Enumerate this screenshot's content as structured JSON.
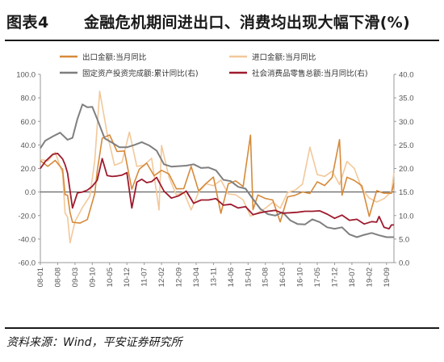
{
  "header": {
    "figure_no": "图表4",
    "title": "金融危机期间进出口、消费均出现大幅下滑(%)"
  },
  "source": "资料来源：Wind，平安证券研究所",
  "colors": {
    "export": "#d68a3a",
    "import": "#f2c89a",
    "fai": "#7f7f7f",
    "retail": "#9e1b2e",
    "axis": "#999999",
    "text": "#555555"
  },
  "chart_data": {
    "type": "line",
    "x_tick_labels": [
      "08-01",
      "08-08",
      "09-03",
      "09-10",
      "10-05",
      "10-12",
      "11-07",
      "12-02",
      "12-09",
      "13-04",
      "13-11",
      "14-06",
      "15-01",
      "15-08",
      "16-03",
      "16-10",
      "17-05",
      "17-12",
      "18-07",
      "19-02",
      "19-09"
    ],
    "x_range": [
      "2008-01",
      "2019-12"
    ],
    "y_left": {
      "min": -60,
      "max": 100,
      "ticks": [
        "100.0",
        "80.0",
        "60.0",
        "40.0",
        "20.0",
        "0.0",
        "-20.0",
        "-40.0",
        "-60.0"
      ]
    },
    "y_right": {
      "min": 0,
      "max": 40,
      "ticks": [
        "40.0",
        "35.0",
        "30.0",
        "25.0",
        "20.0",
        "15.0",
        "10.0",
        "5.0",
        "0.0"
      ]
    },
    "legend_position": "top",
    "series": [
      {
        "name": "出口金额:当月同比",
        "axis": "left",
        "color_key": "export",
        "points": [
          [
            "2008-01",
            26.6
          ],
          [
            "2008-04",
            21.8
          ],
          [
            "2008-07",
            26.9
          ],
          [
            "2008-10",
            19.2
          ],
          [
            "2008-11",
            -2.2
          ],
          [
            "2008-12",
            -2.8
          ],
          [
            "2009-01",
            -17.5
          ],
          [
            "2009-02",
            -25.7
          ],
          [
            "2009-05",
            -26.4
          ],
          [
            "2009-08",
            -23.4
          ],
          [
            "2009-11",
            -1.2
          ],
          [
            "2009-12",
            17.7
          ],
          [
            "2010-02",
            45.7
          ],
          [
            "2010-05",
            48.5
          ],
          [
            "2010-08",
            34.4
          ],
          [
            "2010-11",
            34.9
          ],
          [
            "2011-02",
            2.4
          ],
          [
            "2011-05",
            19.4
          ],
          [
            "2011-08",
            24.5
          ],
          [
            "2011-11",
            13.8
          ],
          [
            "2012-02",
            18.4
          ],
          [
            "2012-05",
            15.3
          ],
          [
            "2012-08",
            2.7
          ],
          [
            "2012-11",
            2.9
          ],
          [
            "2013-02",
            21.8
          ],
          [
            "2013-05",
            1.0
          ],
          [
            "2013-08",
            7.2
          ],
          [
            "2013-11",
            12.7
          ],
          [
            "2014-02",
            -18.1
          ],
          [
            "2014-05",
            7.0
          ],
          [
            "2014-08",
            9.4
          ],
          [
            "2014-11",
            4.7
          ],
          [
            "2015-02",
            48.3
          ],
          [
            "2015-03",
            -15.0
          ],
          [
            "2015-05",
            -2.5
          ],
          [
            "2015-08",
            -5.5
          ],
          [
            "2015-11",
            -6.8
          ],
          [
            "2016-02",
            -25.4
          ],
          [
            "2016-05",
            -4.1
          ],
          [
            "2016-08",
            -2.8
          ],
          [
            "2016-11",
            0.1
          ],
          [
            "2017-02",
            -1.3
          ],
          [
            "2017-05",
            8.7
          ],
          [
            "2017-08",
            5.5
          ],
          [
            "2017-11",
            12.3
          ],
          [
            "2018-02",
            44.5
          ],
          [
            "2018-03",
            -2.7
          ],
          [
            "2018-05",
            12.6
          ],
          [
            "2018-08",
            9.8
          ],
          [
            "2018-11",
            5.4
          ],
          [
            "2019-02",
            -20.7
          ],
          [
            "2019-05",
            1.1
          ],
          [
            "2019-08",
            -1.0
          ],
          [
            "2019-11",
            -1.1
          ],
          [
            "2019-12",
            7.6
          ]
        ]
      },
      {
        "name": "进口金额:当月同比",
        "axis": "left",
        "color_key": "import",
        "points": [
          [
            "2008-01",
            27.6
          ],
          [
            "2008-04",
            26.4
          ],
          [
            "2008-07",
            33.7
          ],
          [
            "2008-10",
            15.6
          ],
          [
            "2008-11",
            -17.9
          ],
          [
            "2008-12",
            -21.3
          ],
          [
            "2009-01",
            -43.1
          ],
          [
            "2009-03",
            -25.1
          ],
          [
            "2009-06",
            -13.2
          ],
          [
            "2009-09",
            -3.5
          ],
          [
            "2009-11",
            26.7
          ],
          [
            "2009-12",
            55.9
          ],
          [
            "2010-01",
            85.5
          ],
          [
            "2010-04",
            49.7
          ],
          [
            "2010-07",
            22.7
          ],
          [
            "2010-10",
            25.3
          ],
          [
            "2011-01",
            51.0
          ],
          [
            "2011-04",
            21.8
          ],
          [
            "2011-07",
            22.9
          ],
          [
            "2011-10",
            28.7
          ],
          [
            "2012-01",
            -15.3
          ],
          [
            "2012-02",
            39.6
          ],
          [
            "2012-05",
            12.7
          ],
          [
            "2012-08",
            -2.6
          ],
          [
            "2012-11",
            0.0
          ],
          [
            "2013-02",
            -15.2
          ],
          [
            "2013-05",
            -0.3
          ],
          [
            "2013-08",
            7.0
          ],
          [
            "2013-11",
            5.3
          ],
          [
            "2014-02",
            10.1
          ],
          [
            "2014-05",
            -1.6
          ],
          [
            "2014-08",
            -2.4
          ],
          [
            "2014-11",
            -6.7
          ],
          [
            "2015-02",
            -20.5
          ],
          [
            "2015-05",
            -17.6
          ],
          [
            "2015-08",
            -13.8
          ],
          [
            "2015-11",
            -8.7
          ],
          [
            "2016-02",
            -13.8
          ],
          [
            "2016-05",
            -0.4
          ],
          [
            "2016-08",
            1.5
          ],
          [
            "2016-11",
            6.7
          ],
          [
            "2017-02",
            38.1
          ],
          [
            "2017-05",
            14.8
          ],
          [
            "2017-08",
            13.3
          ],
          [
            "2017-11",
            17.7
          ],
          [
            "2018-02",
            6.3
          ],
          [
            "2018-05",
            26.0
          ],
          [
            "2018-08",
            19.9
          ],
          [
            "2018-11",
            3.0
          ],
          [
            "2019-02",
            -5.2
          ],
          [
            "2019-05",
            -8.5
          ],
          [
            "2019-08",
            -5.6
          ],
          [
            "2019-11",
            0.3
          ],
          [
            "2019-12",
            16.3
          ]
        ]
      },
      {
        "name": "固定资产投资完成额:累计同比(右)",
        "axis": "right",
        "color_key": "fai",
        "points": [
          [
            "2008-01",
            24.3
          ],
          [
            "2008-03",
            25.9
          ],
          [
            "2008-06",
            26.8
          ],
          [
            "2008-09",
            27.6
          ],
          [
            "2008-12",
            26.1
          ],
          [
            "2009-02",
            26.5
          ],
          [
            "2009-04",
            30.5
          ],
          [
            "2009-06",
            33.6
          ],
          [
            "2009-08",
            33.0
          ],
          [
            "2009-10",
            33.1
          ],
          [
            "2009-12",
            30.5
          ],
          [
            "2010-03",
            26.4
          ],
          [
            "2010-06",
            25.5
          ],
          [
            "2010-09",
            24.5
          ],
          [
            "2010-12",
            24.5
          ],
          [
            "2011-03",
            25.0
          ],
          [
            "2011-06",
            25.6
          ],
          [
            "2011-09",
            24.9
          ],
          [
            "2011-12",
            23.8
          ],
          [
            "2012-03",
            20.9
          ],
          [
            "2012-06",
            20.4
          ],
          [
            "2012-09",
            20.5
          ],
          [
            "2012-12",
            20.6
          ],
          [
            "2013-03",
            20.9
          ],
          [
            "2013-06",
            20.1
          ],
          [
            "2013-09",
            20.2
          ],
          [
            "2013-12",
            19.6
          ],
          [
            "2014-03",
            17.6
          ],
          [
            "2014-06",
            17.3
          ],
          [
            "2014-09",
            16.1
          ],
          [
            "2014-12",
            15.7
          ],
          [
            "2015-03",
            13.5
          ],
          [
            "2015-06",
            11.4
          ],
          [
            "2015-09",
            10.3
          ],
          [
            "2015-12",
            10.0
          ],
          [
            "2016-03",
            10.7
          ],
          [
            "2016-06",
            9.0
          ],
          [
            "2016-09",
            8.2
          ],
          [
            "2016-12",
            8.1
          ],
          [
            "2017-03",
            9.2
          ],
          [
            "2017-06",
            8.6
          ],
          [
            "2017-09",
            7.5
          ],
          [
            "2017-12",
            7.2
          ],
          [
            "2018-03",
            7.5
          ],
          [
            "2018-06",
            6.0
          ],
          [
            "2018-09",
            5.4
          ],
          [
            "2018-12",
            5.9
          ],
          [
            "2019-03",
            6.3
          ],
          [
            "2019-06",
            5.8
          ],
          [
            "2019-09",
            5.4
          ],
          [
            "2019-12",
            5.4
          ]
        ]
      },
      {
        "name": "社会消费品零售总额:当月同比(右)",
        "axis": "right",
        "color_key": "retail",
        "points": [
          [
            "2008-01",
            20.0
          ],
          [
            "2008-03",
            21.5
          ],
          [
            "2008-06",
            23.0
          ],
          [
            "2008-08",
            23.2
          ],
          [
            "2008-10",
            22.0
          ],
          [
            "2008-11",
            20.8
          ],
          [
            "2008-12",
            19.0
          ],
          [
            "2009-02",
            11.6
          ],
          [
            "2009-04",
            14.8
          ],
          [
            "2009-06",
            15.0
          ],
          [
            "2009-08",
            15.4
          ],
          [
            "2009-10",
            16.2
          ],
          [
            "2009-12",
            17.5
          ],
          [
            "2010-02",
            22.1
          ],
          [
            "2010-04",
            18.5
          ],
          [
            "2010-06",
            18.3
          ],
          [
            "2010-08",
            18.4
          ],
          [
            "2010-10",
            18.6
          ],
          [
            "2010-12",
            19.1
          ],
          [
            "2011-02",
            11.6
          ],
          [
            "2011-04",
            17.1
          ],
          [
            "2011-06",
            17.7
          ],
          [
            "2011-08",
            17.0
          ],
          [
            "2011-10",
            17.2
          ],
          [
            "2011-12",
            18.1
          ],
          [
            "2012-03",
            15.2
          ],
          [
            "2012-06",
            13.7
          ],
          [
            "2012-09",
            14.2
          ],
          [
            "2012-12",
            15.2
          ],
          [
            "2013-03",
            12.6
          ],
          [
            "2013-06",
            13.3
          ],
          [
            "2013-09",
            13.3
          ],
          [
            "2013-12",
            13.6
          ],
          [
            "2014-03",
            12.2
          ],
          [
            "2014-06",
            12.4
          ],
          [
            "2014-09",
            11.6
          ],
          [
            "2014-12",
            11.9
          ],
          [
            "2015-03",
            10.2
          ],
          [
            "2015-06",
            10.6
          ],
          [
            "2015-09",
            10.9
          ],
          [
            "2015-12",
            11.1
          ],
          [
            "2016-03",
            10.5
          ],
          [
            "2016-06",
            10.6
          ],
          [
            "2016-09",
            10.7
          ],
          [
            "2016-12",
            10.9
          ],
          [
            "2017-03",
            10.9
          ],
          [
            "2017-06",
            11.0
          ],
          [
            "2017-09",
            10.3
          ],
          [
            "2017-12",
            9.4
          ],
          [
            "2018-03",
            10.1
          ],
          [
            "2018-06",
            9.0
          ],
          [
            "2018-09",
            9.2
          ],
          [
            "2018-12",
            8.2
          ],
          [
            "2019-03",
            8.7
          ],
          [
            "2019-05",
            8.6
          ],
          [
            "2019-06",
            9.8
          ],
          [
            "2019-08",
            7.5
          ],
          [
            "2019-10",
            7.2
          ],
          [
            "2019-11",
            8.0
          ],
          [
            "2019-12",
            8.0
          ]
        ]
      }
    ]
  }
}
